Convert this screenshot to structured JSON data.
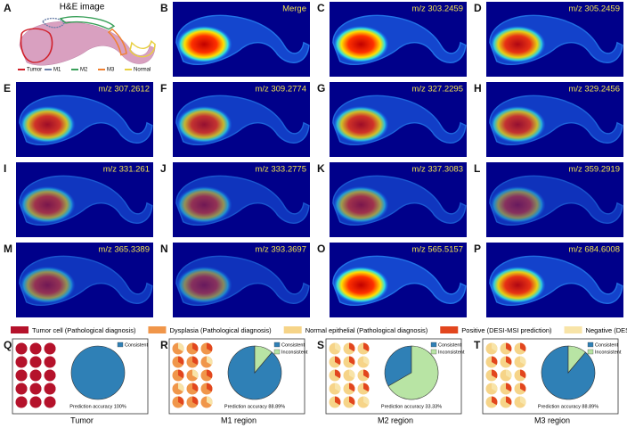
{
  "panel_a": {
    "letter": "A",
    "title": "H&E image",
    "legend": [
      {
        "label": "Tumor",
        "color": "#d0202a"
      },
      {
        "label": "M1",
        "color": "#6a7fa8"
      },
      {
        "label": "M2",
        "color": "#3aa05a"
      },
      {
        "label": "M3",
        "color": "#f08030"
      },
      {
        "label": "Normal",
        "color": "#e8d040"
      }
    ]
  },
  "panels": [
    {
      "letter": "B",
      "label": "Merge"
    },
    {
      "letter": "C",
      "label": "m/z 303.2459"
    },
    {
      "letter": "D",
      "label": "m/z 305.2459"
    },
    {
      "letter": "E",
      "label": "m/z 307.2612"
    },
    {
      "letter": "F",
      "label": "m/z 309.2774"
    },
    {
      "letter": "G",
      "label": "m/z 327.2295"
    },
    {
      "letter": "H",
      "label": "m/z 329.2456"
    },
    {
      "letter": "I",
      "label": "m/z 331.261"
    },
    {
      "letter": "J",
      "label": "m/z 333.2775"
    },
    {
      "letter": "K",
      "label": "m/z 337.3083"
    },
    {
      "letter": "L",
      "label": "m/z 359.2919"
    },
    {
      "letter": "M",
      "label": "m/z 365.3389"
    },
    {
      "letter": "N",
      "label": "m/z 393.3697"
    },
    {
      "letter": "O",
      "label": "m/z 565.5157"
    },
    {
      "letter": "P",
      "label": "m/z 684.6008"
    }
  ],
  "legend": [
    {
      "label": "Tumor cell (Pathological diagnosis)",
      "color": "#b5122b"
    },
    {
      "label": "Dysplasia (Pathological diagnosis)",
      "color": "#f0964a"
    },
    {
      "label": "Normal epithelial (Pathological diagnosis)",
      "color": "#f6d488"
    },
    {
      "label": "Positive (DESI-MSI prediction)",
      "color": "#e2461e"
    },
    {
      "label": "Negative (DESI-MSI prediction)",
      "color": "#f8e4a8"
    }
  ],
  "pies": [
    {
      "letter": "Q",
      "caption": "Tumor",
      "accuracy": "Prediction accuracy 100%",
      "slices": [
        {
          "name": "Consistent",
          "value": 100,
          "color": "#2f80b6"
        }
      ]
    },
    {
      "letter": "R",
      "caption": "M1 region",
      "accuracy": "Prediction accuracy 88.89%",
      "slices": [
        {
          "name": "Consistent",
          "value": 88.89,
          "color": "#2f80b6"
        },
        {
          "name": "Inconsistent",
          "value": 11.11,
          "color": "#b8e4a4"
        }
      ]
    },
    {
      "letter": "S",
      "caption": "M2 region",
      "accuracy": "Prediction accuracy 33.33%",
      "slices": [
        {
          "name": "Consistent",
          "value": 33.33,
          "color": "#2f80b6"
        },
        {
          "name": "Inconsistent",
          "value": 66.67,
          "color": "#b8e4a4"
        }
      ]
    },
    {
      "letter": "T",
      "caption": "M3 region",
      "accuracy": "Prediction accuracy 88.89%",
      "slices": [
        {
          "name": "Consistent",
          "value": 88.89,
          "color": "#2f80b6"
        },
        {
          "name": "Inconsistent",
          "value": 11.11,
          "color": "#b8e4a4"
        }
      ]
    }
  ]
}
